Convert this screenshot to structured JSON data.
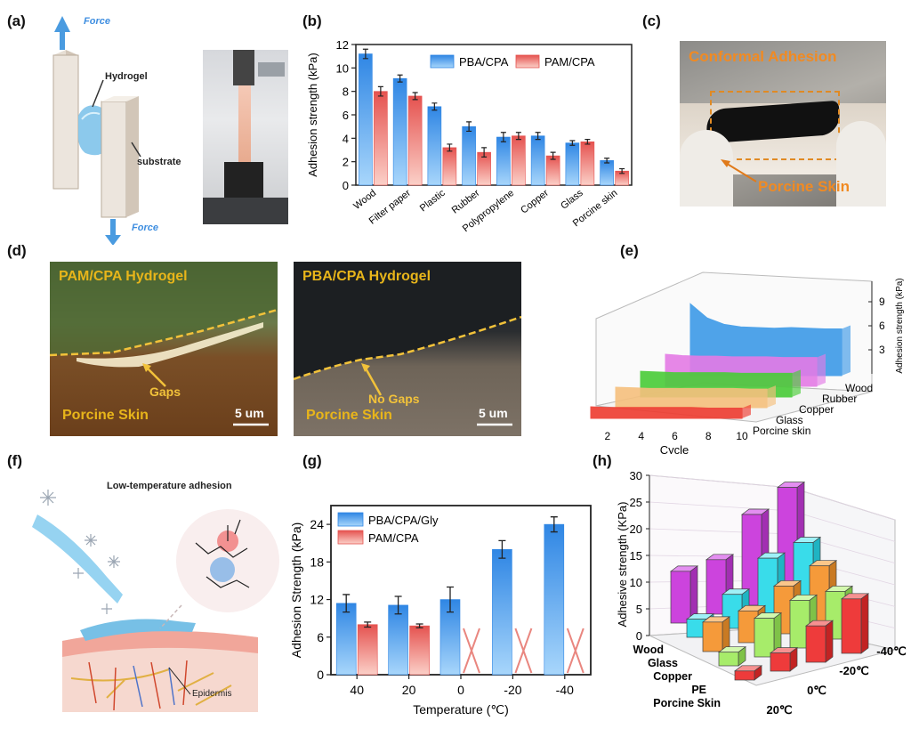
{
  "panel_labels": [
    "(a)",
    "(b)",
    "(c)",
    "(d)",
    "(e)",
    "(f)",
    "(g)",
    "(h)"
  ],
  "panel_a": {
    "force_top": "Force",
    "force_bottom": "Force",
    "hydrogel": "Hydrogel",
    "substrate": "substrate"
  },
  "panel_c": {
    "title": "Conformal Adhesion",
    "label": "Porcine Skin"
  },
  "panel_d": {
    "left": {
      "title": "PAM/CPA Hydrogel",
      "annotation": "Gaps",
      "skin": "Porcine Skin",
      "scale": "5 um"
    },
    "right": {
      "title": "PBA/CPA Hydrogel",
      "annotation": "No Gaps",
      "skin": "Porcine Skin",
      "scale": "5 um"
    }
  },
  "panel_f": {
    "title": "Low-temperature adhesion",
    "label": "Epidermis"
  },
  "colors": {
    "blue": "#3d9ae8",
    "red": "#ee6e6b",
    "purple": "#cc44dd",
    "cyan": "#39dcea",
    "orange": "#f59a3a",
    "green": "#a7ec6a",
    "red3d": "#ee3b3b"
  },
  "chart_data": [
    {
      "id": "b",
      "type": "bar",
      "ylabel": "Adhesion strength (kPa)",
      "ylim": [
        0,
        12
      ],
      "yticks": [
        0,
        2,
        4,
        6,
        8,
        10,
        12
      ],
      "categories": [
        "Wood",
        "Filter paper",
        "Plastic",
        "Rubber",
        "Polypropylene",
        "Copper",
        "Glass",
        "Porcine skin"
      ],
      "series": [
        {
          "name": "PBA/CPA",
          "values": [
            11.2,
            9.1,
            6.7,
            5.0,
            4.1,
            4.2,
            3.6,
            2.1
          ],
          "errors": [
            0.4,
            0.3,
            0.3,
            0.4,
            0.4,
            0.3,
            0.2,
            0.2
          ]
        },
        {
          "name": "PAM/CPA",
          "values": [
            8.0,
            7.6,
            3.2,
            2.8,
            4.2,
            2.5,
            3.7,
            1.2
          ],
          "errors": [
            0.4,
            0.3,
            0.3,
            0.4,
            0.3,
            0.3,
            0.2,
            0.2
          ]
        }
      ]
    },
    {
      "id": "e",
      "type": "area",
      "xlabel": "Cycle",
      "zlabel": "Adhesion strength (kPa)",
      "xticks": [
        2,
        4,
        6,
        8,
        10
      ],
      "zticks": [
        3,
        6,
        9
      ],
      "series": [
        "Porcine skin",
        "Glass",
        "Copper",
        "Rubber",
        "Wood"
      ],
      "series_colors": [
        "#ee3b2f",
        "#f6c07d",
        "#49cc38",
        "#e47be6",
        "#3d9ae8"
      ],
      "x": [
        1,
        2,
        3,
        4,
        5,
        6,
        7,
        8,
        9,
        10
      ],
      "values": [
        [
          1.8,
          1.7,
          1.7,
          1.7,
          1.7,
          1.7,
          1.7,
          1.6,
          1.6,
          1.6
        ],
        [
          3.2,
          3.1,
          3.0,
          3.0,
          3.0,
          3.0,
          3.0,
          3.0,
          2.9,
          2.9
        ],
        [
          4.0,
          3.9,
          3.8,
          3.8,
          3.8,
          3.8,
          3.7,
          3.7,
          3.7,
          3.7
        ],
        [
          5.0,
          4.8,
          4.7,
          4.7,
          4.6,
          4.6,
          4.6,
          4.5,
          4.5,
          4.5
        ],
        [
          11.2,
          9.0,
          8.0,
          7.6,
          7.5,
          7.4,
          7.5,
          7.4,
          7.3,
          7.3
        ]
      ]
    },
    {
      "id": "g",
      "type": "bar",
      "xlabel": "Temperature (℃)",
      "ylabel": "Adhesion Strength (kPa)",
      "ylim": [
        0,
        27
      ],
      "yticks": [
        0,
        6,
        12,
        18,
        24
      ],
      "categories": [
        "40",
        "20",
        "0",
        "-20",
        "-40"
      ],
      "series": [
        {
          "name": "PBA/CPA/Gly",
          "values": [
            11.4,
            11.1,
            12.0,
            20.0,
            24.0
          ],
          "errors": [
            1.4,
            1.4,
            2.0,
            1.4,
            1.2
          ]
        },
        {
          "name": "PAM/CPA",
          "values": [
            8.0,
            7.8,
            null,
            null,
            null
          ],
          "errors": [
            0.4,
            0.3,
            null,
            null,
            null
          ]
        }
      ],
      "failed_marker": "X"
    },
    {
      "id": "h",
      "type": "bar3d",
      "zlabel": "Adhesive strength (KPa)",
      "zticks": [
        0,
        5,
        10,
        15,
        20,
        25,
        30
      ],
      "materials": [
        "Wood",
        "Glass",
        "Copper",
        "PE",
        "Porcine Skin"
      ],
      "temperatures": [
        "20℃",
        "0℃",
        "-20℃",
        "-40℃"
      ],
      "values": [
        [
          11.4,
          4.0,
          6.5,
          3.0,
          2.0
        ],
        [
          12.0,
          7.5,
          7.0,
          8.5,
          4.0
        ],
        [
          20.0,
          13.5,
          10.5,
          10.5,
          8.0
        ],
        [
          24.0,
          15.0,
          13.0,
          10.5,
          12.0
        ]
      ]
    }
  ]
}
